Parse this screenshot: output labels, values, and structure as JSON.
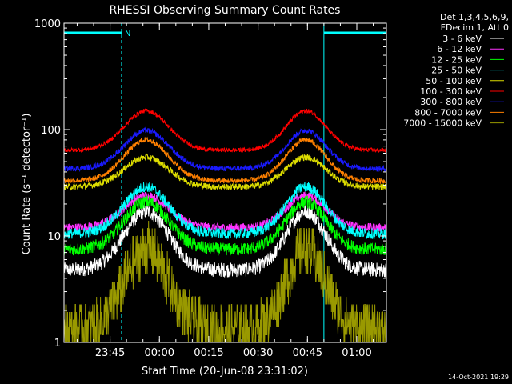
{
  "chart_data": {
    "type": "line",
    "title": "RHESSI Observing Summary Count Rates",
    "xlabel": "Start Time (20-Jun-08 23:31:02)",
    "ylabel": "Count Rate (s⁻¹ detector⁻¹)",
    "y_scale": "log",
    "ylim": [
      1,
      1000
    ],
    "xlim_minutes_from_start": [
      0,
      98
    ],
    "x_ticks": [
      {
        "label": "23:45",
        "minutes": 14
      },
      {
        "label": "00:00",
        "minutes": 29
      },
      {
        "label": "00:15",
        "minutes": 44
      },
      {
        "label": "00:30",
        "minutes": 59
      },
      {
        "label": "00:45",
        "minutes": 74
      },
      {
        "label": "01:00",
        "minutes": 89
      }
    ],
    "y_ticks": [
      {
        "label": "1",
        "value": 1
      },
      {
        "label": "10",
        "value": 10
      },
      {
        "label": "100",
        "value": 100
      },
      {
        "label": "1000",
        "value": 1000
      }
    ],
    "legend_header": [
      "Det 1,3,4,5,6,9,",
      "FDecim 1, Att 0"
    ],
    "legend_position": "top-right",
    "annotation_n": "N",
    "night_periods_minutes": [
      [
        0,
        17.5
      ],
      [
        79,
        98
      ]
    ],
    "timestamp": "14-Oct-2021 19:29",
    "series": [
      {
        "name": "3 - 6 keV",
        "color": "#ffffff",
        "min": 4.8,
        "max": 17,
        "noise": 0.07
      },
      {
        "name": "6 - 12 keV",
        "color": "#ff33ff",
        "min": 12,
        "max": 24,
        "noise": 0.04
      },
      {
        "name": "12 - 25 keV",
        "color": "#00ff00",
        "min": 7.5,
        "max": 21,
        "noise": 0.06
      },
      {
        "name": "25 - 50 keV",
        "color": "#00ffff",
        "min": 10.5,
        "max": 29,
        "noise": 0.05
      },
      {
        "name": "50 - 100 keV",
        "color": "#dddd00",
        "min": 29,
        "max": 55,
        "noise": 0.03
      },
      {
        "name": "100 - 300 keV",
        "color": "#ff0000",
        "min": 64,
        "max": 150,
        "noise": 0.02
      },
      {
        "name": "300 - 800 keV",
        "color": "#1a1aff",
        "min": 43,
        "max": 98,
        "noise": 0.025
      },
      {
        "name": "800 - 7000 keV",
        "color": "#ff8000",
        "min": 33,
        "max": 80,
        "noise": 0.025
      },
      {
        "name": "7000 - 15000 keV",
        "color": "#999900",
        "min": 1.3,
        "max": 7.5,
        "noise": 0.25
      }
    ]
  }
}
